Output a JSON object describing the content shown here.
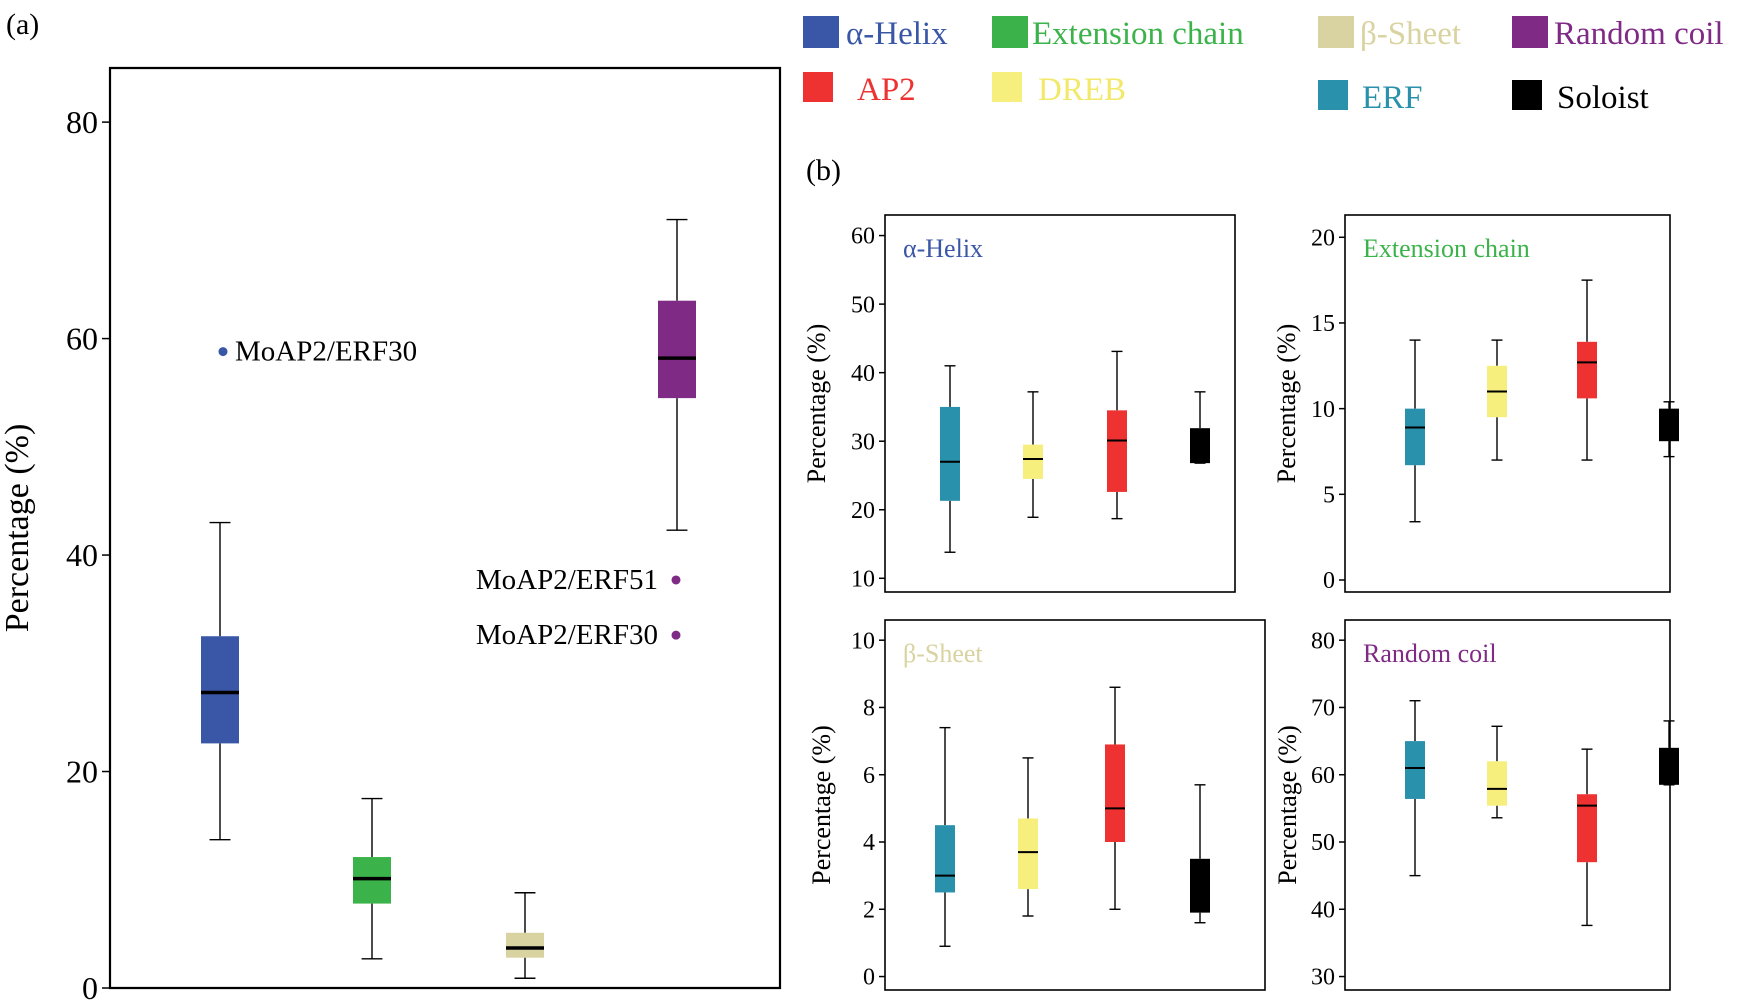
{
  "panel_labels": {
    "a": "(a)",
    "b": "(b)"
  },
  "legend": [
    {
      "label": "α-Helix",
      "color": "#3A56A6"
    },
    {
      "label": "Extension chain",
      "color": "#3BB34A"
    },
    {
      "label": "β-Sheet",
      "color": "#D8D3A0"
    },
    {
      "label": "Random coil",
      "color": "#7F2A85"
    },
    {
      "label": "AP2",
      "color": "#EE3131"
    },
    {
      "label": "DREB",
      "color": "#F6EF7E"
    },
    {
      "label": "ERF",
      "color": "#2A91AD"
    },
    {
      "label": "Soloist",
      "color": "#000000"
    }
  ],
  "chart_data": [
    {
      "id": "a",
      "type": "box",
      "ylabel": "Percentage (%)",
      "ylim": [
        0,
        85
      ],
      "yticks": [
        0,
        20,
        40,
        60,
        80
      ],
      "boxes": [
        {
          "name": "α-Helix",
          "color": "#3A56A6",
          "min": 13.7,
          "q1": 22.6,
          "median": 27.3,
          "q3": 32.5,
          "max": 43.0
        },
        {
          "name": "Extension chain",
          "color": "#3BB34A",
          "min": 2.7,
          "q1": 7.8,
          "median": 10.1,
          "q3": 12.1,
          "max": 17.5
        },
        {
          "name": "β-Sheet",
          "color": "#D8D3A0",
          "min": 0.9,
          "q1": 2.8,
          "median": 3.7,
          "q3": 5.1,
          "max": 8.8
        },
        {
          "name": "Random coil",
          "color": "#7F2A85",
          "min": 42.3,
          "q1": 54.5,
          "median": 58.2,
          "q3": 63.5,
          "max": 71.0
        }
      ],
      "outliers": [
        {
          "box": 0,
          "value": 58.8,
          "label": "MoAP2/ERF30"
        },
        {
          "box": 3,
          "value": 37.7,
          "label": "MoAP2/ERF51"
        },
        {
          "box": 3,
          "value": 32.6,
          "label": "MoAP2/ERF30"
        }
      ]
    },
    {
      "id": "b1",
      "type": "box",
      "title": "α-Helix",
      "title_color": "#3A56A6",
      "ylabel": "Percentage (%)",
      "ylim": [
        8,
        63
      ],
      "yticks": [
        10,
        20,
        30,
        40,
        50,
        60
      ],
      "categories": [
        "ERF",
        "DREB",
        "AP2",
        "Soloist"
      ],
      "boxes": [
        {
          "name": "ERF",
          "color": "#2A91AD",
          "min": 13.8,
          "q1": 21.3,
          "median": 27.0,
          "q3": 35.0,
          "max": 41.0
        },
        {
          "name": "DREB",
          "color": "#F6EF7E",
          "min": 18.9,
          "q1": 24.5,
          "median": 27.4,
          "q3": 29.5,
          "max": 37.2
        },
        {
          "name": "AP2",
          "color": "#EE3131",
          "min": 18.7,
          "q1": 22.6,
          "median": 30.1,
          "q3": 34.5,
          "max": 43.1
        },
        {
          "name": "Soloist",
          "color": "#000000",
          "min": 26.8,
          "q1": 26.8,
          "median": 29.0,
          "q3": 31.9,
          "max": 37.2
        }
      ]
    },
    {
      "id": "b2",
      "type": "box",
      "title": "Extension chain",
      "title_color": "#3BB34A",
      "ylabel": "Percentage (%)",
      "ylim": [
        -0.7,
        21.3
      ],
      "yticks": [
        0,
        5,
        10,
        15,
        20
      ],
      "categories": [
        "ERF",
        "DREB",
        "AP2",
        "Soloist"
      ],
      "boxes": [
        {
          "name": "ERF",
          "color": "#2A91AD",
          "min": 3.4,
          "q1": 6.7,
          "median": 8.9,
          "q3": 10.0,
          "max": 14.0
        },
        {
          "name": "DREB",
          "color": "#F6EF7E",
          "min": 7.0,
          "q1": 9.5,
          "median": 11.0,
          "q3": 12.5,
          "max": 14.0
        },
        {
          "name": "AP2",
          "color": "#EE3131",
          "min": 7.0,
          "q1": 10.6,
          "median": 12.7,
          "q3": 13.9,
          "max": 17.5
        },
        {
          "name": "Soloist",
          "color": "#000000",
          "min": 7.2,
          "q1": 8.1,
          "median": 9.1,
          "q3": 10.0,
          "max": 10.4
        }
      ]
    },
    {
      "id": "b3",
      "type": "box",
      "title": "β-Sheet",
      "title_color": "#D8D3A0",
      "ylabel": "Percentage (%)",
      "ylim": [
        -0.4,
        10.6
      ],
      "yticks": [
        0,
        2,
        4,
        6,
        8,
        10
      ],
      "categories": [
        "ERF",
        "DREB",
        "AP2",
        "Soloist"
      ],
      "boxes": [
        {
          "name": "ERF",
          "color": "#2A91AD",
          "min": 0.9,
          "q1": 2.5,
          "median": 3.0,
          "q3": 4.5,
          "max": 7.4
        },
        {
          "name": "DREB",
          "color": "#F6EF7E",
          "min": 1.8,
          "q1": 2.6,
          "median": 3.7,
          "q3": 4.7,
          "max": 6.5
        },
        {
          "name": "AP2",
          "color": "#EE3131",
          "min": 2.0,
          "q1": 4.0,
          "median": 5.0,
          "q3": 6.9,
          "max": 8.6
        },
        {
          "name": "Soloist",
          "color": "#000000",
          "min": 1.6,
          "q1": 1.9,
          "median": 2.6,
          "q3": 3.5,
          "max": 5.7
        }
      ]
    },
    {
      "id": "b4",
      "type": "box",
      "title": "Random coil",
      "title_color": "#7F2A85",
      "ylabel": "Percentage (%)",
      "ylim": [
        28,
        83
      ],
      "yticks": [
        30,
        40,
        50,
        60,
        70,
        80
      ],
      "categories": [
        "ERF",
        "DREB",
        "AP2",
        "Soloist"
      ],
      "boxes": [
        {
          "name": "ERF",
          "color": "#2A91AD",
          "min": 45.0,
          "q1": 56.4,
          "median": 61.0,
          "q3": 65.0,
          "max": 71.0
        },
        {
          "name": "DREB",
          "color": "#F6EF7E",
          "min": 53.6,
          "q1": 55.4,
          "median": 57.9,
          "q3": 62.0,
          "max": 67.2
        },
        {
          "name": "AP2",
          "color": "#EE3131",
          "min": 37.6,
          "q1": 47.0,
          "median": 55.4,
          "q3": 57.1,
          "max": 63.8
        },
        {
          "name": "Soloist",
          "color": "#000000",
          "min": 58.5,
          "q1": 58.5,
          "median": 60.2,
          "q3": 64.0,
          "max": 68.0
        }
      ]
    }
  ]
}
